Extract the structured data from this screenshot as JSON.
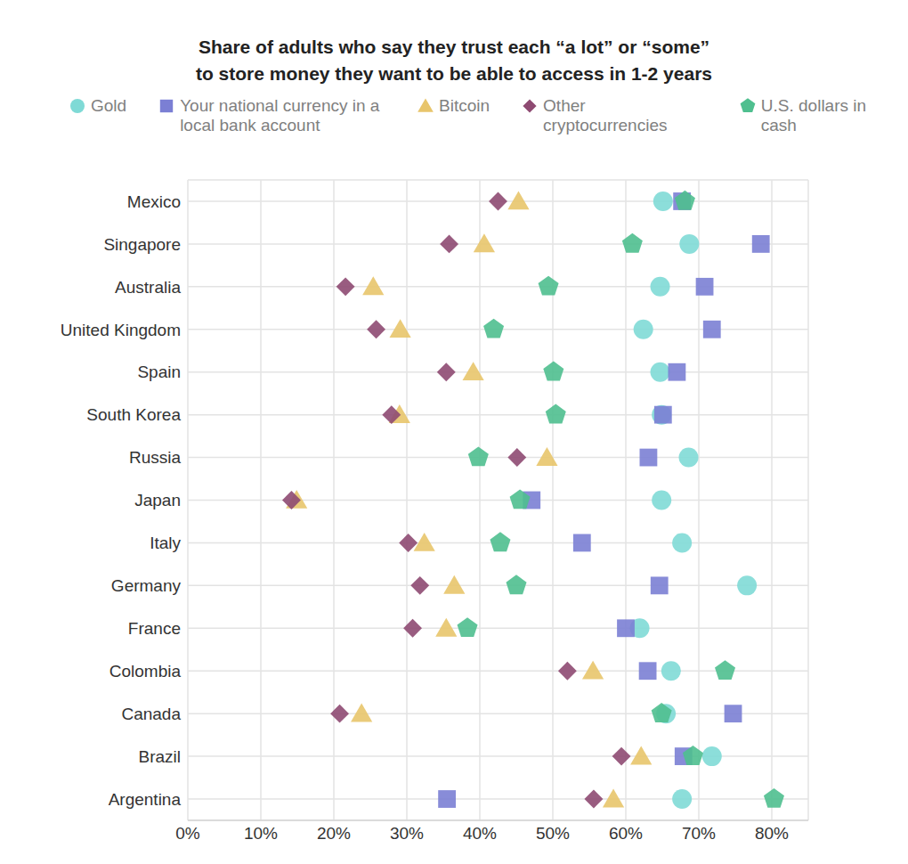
{
  "chart_data": {
    "type": "scatter",
    "title": "Share of adults who say they trust each “a lot” or “some”\nto store money they want to be able to access in 1-2 years",
    "categories": [
      "Mexico",
      "Singapore",
      "Australia",
      "United Kingdom",
      "Spain",
      "South Korea",
      "Russia",
      "Japan",
      "Italy",
      "Germany",
      "France",
      "Colombia",
      "Canada",
      "Brazil",
      "Argentina"
    ],
    "series": [
      {
        "name": "Gold",
        "color": "#7fdad6",
        "marker": "circle",
        "values": [
          65.1,
          68.7,
          64.7,
          62.4,
          64.7,
          64.9,
          68.6,
          64.9,
          67.7,
          76.6,
          61.9,
          66.2,
          65.5,
          71.8,
          67.7
        ]
      },
      {
        "name": "Your national currency in a local bank account",
        "color": "#7b7fd4",
        "marker": "square",
        "values": [
          67.7,
          78.5,
          70.8,
          71.8,
          67.0,
          65.1,
          63.1,
          47.1,
          54.0,
          64.6,
          60.0,
          63.0,
          74.7,
          67.9,
          35.5
        ]
      },
      {
        "name": "Bitcoin",
        "color": "#e8c56b",
        "marker": "triangle",
        "values": [
          45.3,
          40.6,
          25.4,
          29.1,
          39.1,
          29.0,
          49.2,
          14.9,
          32.4,
          36.5,
          35.4,
          55.5,
          23.8,
          62.1,
          58.3
        ]
      },
      {
        "name": "Other cryptocurrencies",
        "color": "#8e4a72",
        "marker": "diamond",
        "values": [
          42.5,
          35.8,
          21.6,
          25.8,
          35.4,
          27.9,
          45.1,
          14.2,
          30.2,
          31.8,
          30.8,
          52.0,
          20.8,
          59.4,
          55.6
        ]
      },
      {
        "name": "U.S. dollars in cash",
        "color": "#4fbf8f",
        "marker": "pentagon",
        "values": [
          68.1,
          60.9,
          49.4,
          41.9,
          50.1,
          50.4,
          39.8,
          45.5,
          42.8,
          45.0,
          38.3,
          73.6,
          64.9,
          69.2,
          80.3
        ]
      }
    ],
    "xlim": [
      0,
      85
    ],
    "xticks": [
      {
        "value": 0,
        "label": "0%"
      },
      {
        "value": 10,
        "label": "10%"
      },
      {
        "value": 20,
        "label": "20%"
      },
      {
        "value": 30,
        "label": "30%"
      },
      {
        "value": 40,
        "label": "40%"
      },
      {
        "value": 50,
        "label": "50%"
      },
      {
        "value": 60,
        "label": "60%"
      },
      {
        "value": 70,
        "label": "70%"
      },
      {
        "value": 80,
        "label": "80%"
      }
    ],
    "grid": true,
    "legend": "top"
  }
}
